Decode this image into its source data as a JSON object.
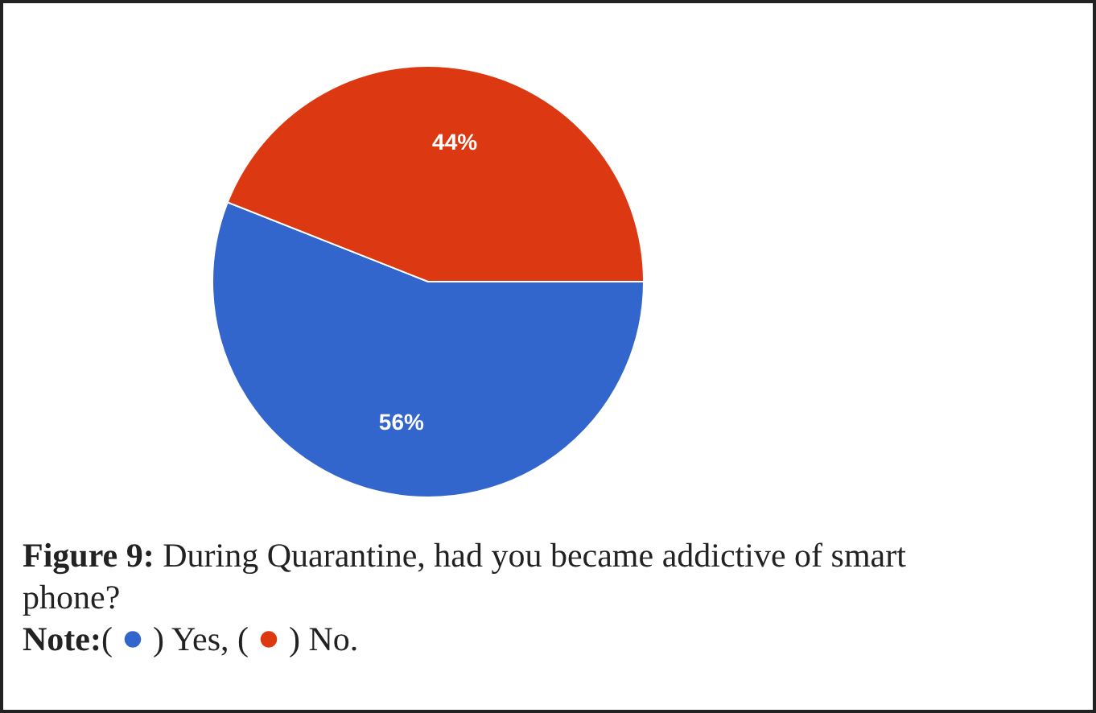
{
  "chart_data": {
    "type": "pie",
    "title": "Figure 9: During Quarantine, had you became addictive of smart phone?",
    "categories": [
      null,
      null
    ],
    "values": [
      56,
      44
    ],
    "colors": [
      "#3366cc",
      "#dc3912"
    ],
    "value_labels": [
      "56%",
      "44%"
    ],
    "annotations": [
      "Note:( ● ) Yes, ( ● ) No."
    ]
  }
}
